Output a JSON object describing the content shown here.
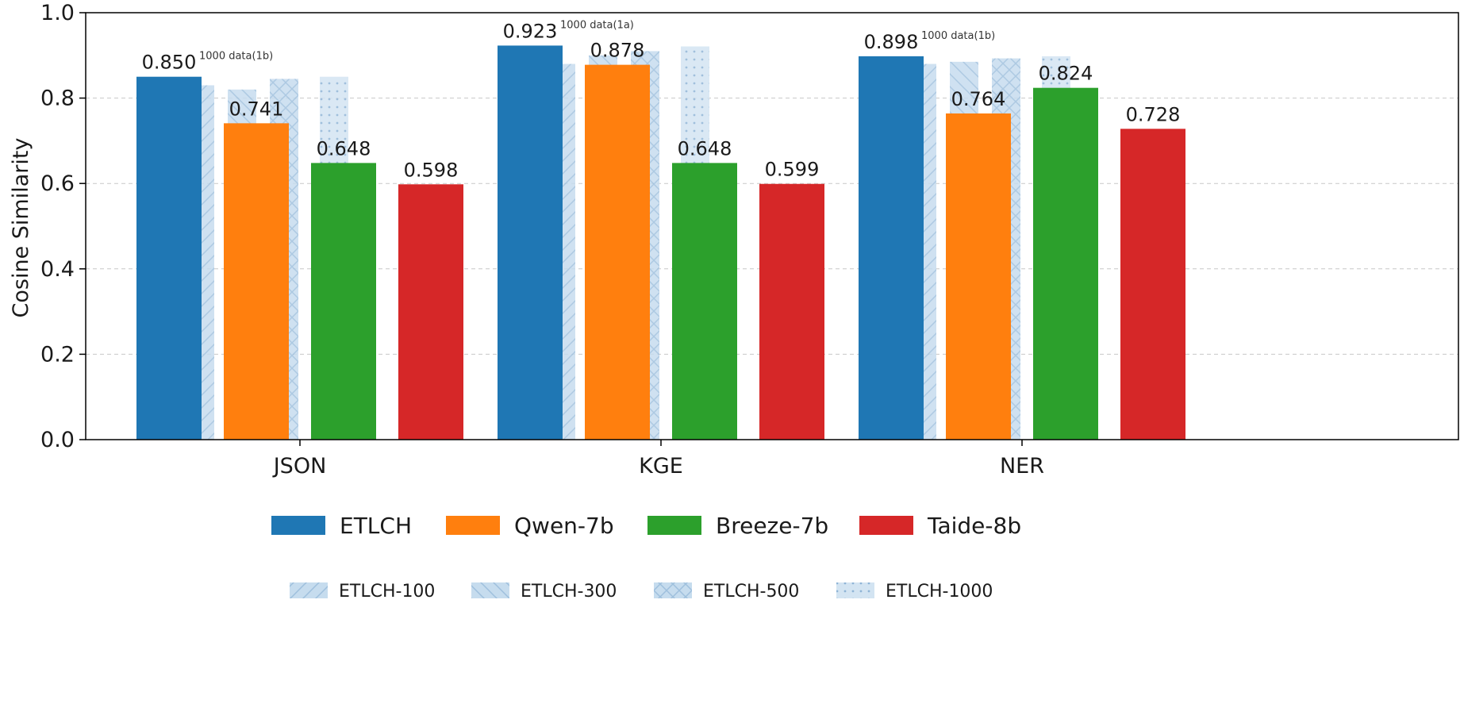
{
  "chart_data": {
    "type": "bar",
    "ylabel": "Cosine Similarity",
    "xlabel": "",
    "ylim": [
      0,
      1.0
    ],
    "yticks": [
      "0.0",
      "0.2",
      "0.4",
      "0.6",
      "0.8",
      "1.0"
    ],
    "grid": "horizontal dashed",
    "categories": [
      "JSON",
      "KGE",
      "NER"
    ],
    "series": [
      {
        "name": "ETLCH",
        "color": "#1f77b4",
        "values": [
          0.85,
          0.923,
          0.898
        ],
        "labels": [
          "0.850",
          "0.923",
          "0.898"
        ]
      },
      {
        "name": "Qwen-7b",
        "color": "#ff7f0e",
        "values": [
          0.741,
          0.878,
          0.764
        ],
        "labels": [
          "0.741",
          "0.878",
          "0.764"
        ]
      },
      {
        "name": "Breeze-7b",
        "color": "#2ca02c",
        "values": [
          0.648,
          0.648,
          0.824
        ],
        "labels": [
          "0.648",
          "0.648",
          "0.824"
        ]
      },
      {
        "name": "Taide-8b",
        "color": "#d62728",
        "values": [
          0.598,
          0.599,
          0.728
        ],
        "labels": [
          "0.598",
          "0.599",
          "0.728"
        ]
      }
    ],
    "overlay_series": [
      {
        "name": "ETLCH-100",
        "pattern": "diag-up",
        "values": [
          0.83,
          0.88,
          0.88
        ]
      },
      {
        "name": "ETLCH-300",
        "pattern": "diag-down",
        "values": [
          0.82,
          0.9,
          0.885
        ]
      },
      {
        "name": "ETLCH-500",
        "pattern": "cross",
        "values": [
          0.845,
          0.91,
          0.893
        ]
      },
      {
        "name": "ETLCH-1000",
        "pattern": "dots",
        "values": [
          0.85,
          0.921,
          0.898
        ]
      }
    ],
    "annotations": [
      "1000 data(1b)",
      "1000 data(1a)",
      "1000 data(1b)"
    ],
    "legend": {
      "placement": "bottom",
      "rows": 2
    }
  }
}
